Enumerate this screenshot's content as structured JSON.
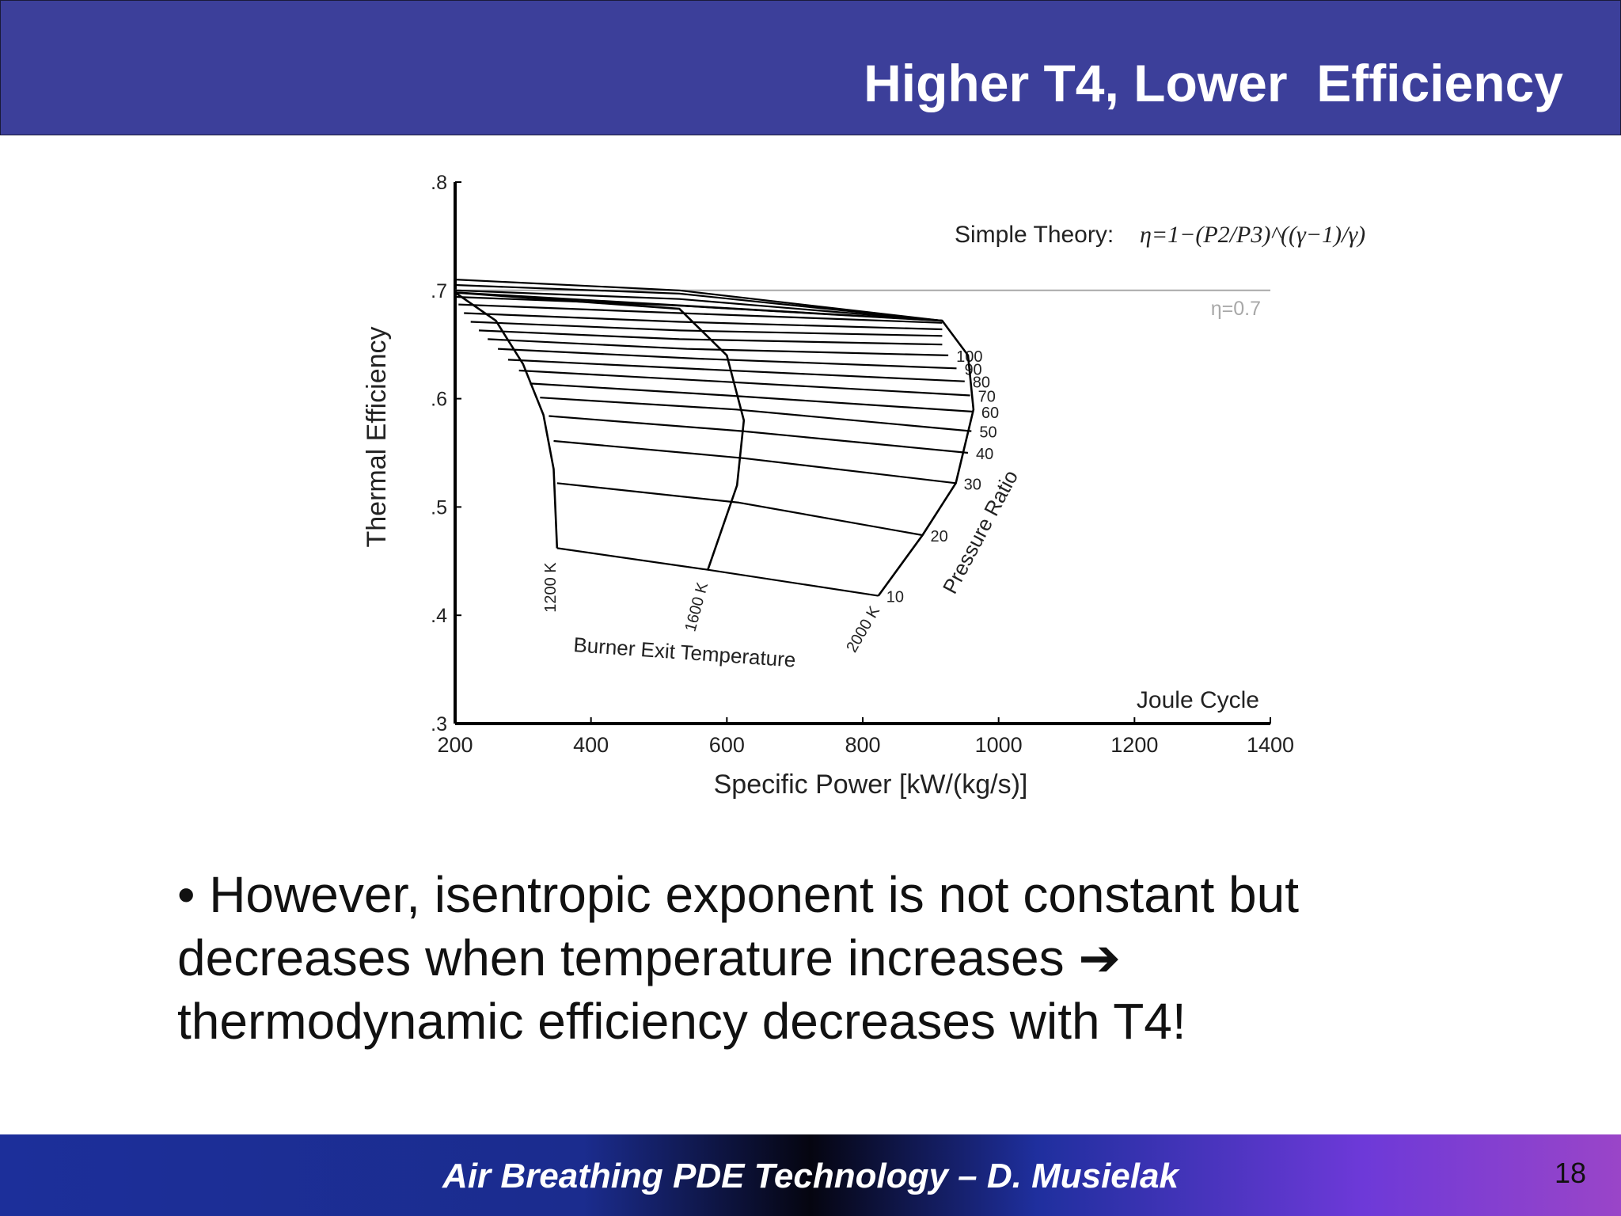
{
  "slide": {
    "title": "Higher T4, Lower  Efficiency",
    "bullet": "• However, isentropic exponent is not constant but decreases when temperature increases ➔ thermodynamic efficiency decreases with T4!",
    "footer": "Air Breathing PDE Technology – D. Musielak",
    "page_number": "18"
  },
  "colors": {
    "title_bar": "#3c3f9a",
    "footer_gradient": [
      "#1c2f9a",
      "#050510",
      "#6d39d8",
      "#9a45c8"
    ],
    "reference_line": "#a8a8a8"
  },
  "chart_data": {
    "type": "line",
    "title": "",
    "xlabel": "Specific Power [kW/(kg/s)]",
    "ylabel": "Thermal Efficiency",
    "xlim": [
      200,
      1400
    ],
    "ylim": [
      0.3,
      0.8
    ],
    "x_ticks": [
      "200",
      "400",
      "600",
      "800",
      "1000",
      "1200",
      "1400"
    ],
    "y_ticks": [
      ".3",
      ".4",
      ".5",
      ".6",
      ".7",
      ".8"
    ],
    "grid": false,
    "formula_label": "Simple Theory:",
    "formula": "η=1−(P2/P3)^((γ−1)/γ)",
    "reference_line": {
      "y": 0.7,
      "label": "η=0.7"
    },
    "cycle_label": "Joule Cycle",
    "pressure_ratio_axis_label": "Pressure Ratio",
    "temperature_axis_label": "Burner Exit Temperature",
    "temperature_series": [
      {
        "name": "1200 K",
        "points": [
          [
            200,
            0.698
          ],
          [
            260,
            0.672
          ],
          [
            300,
            0.632
          ],
          [
            330,
            0.585
          ],
          [
            345,
            0.535
          ],
          [
            350,
            0.462
          ]
        ]
      },
      {
        "name": "1600 K",
        "points": [
          [
            200,
            0.698
          ],
          [
            530,
            0.683
          ],
          [
            600,
            0.64
          ],
          [
            625,
            0.58
          ],
          [
            615,
            0.52
          ],
          [
            572,
            0.442
          ]
        ]
      },
      {
        "name": "2000 K",
        "points": [
          [
            200,
            0.698
          ],
          [
            917,
            0.672
          ],
          [
            955,
            0.64
          ],
          [
            963,
            0.59
          ],
          [
            937,
            0.522
          ],
          [
            888,
            0.474
          ],
          [
            823,
            0.418
          ]
        ]
      }
    ],
    "pressure_ratio_series": [
      {
        "name": "10",
        "points": [
          [
            350,
            0.462
          ],
          [
            572,
            0.442
          ],
          [
            823,
            0.418
          ]
        ]
      },
      {
        "name": "20",
        "points": [
          [
            350,
            0.522
          ],
          [
            618,
            0.504
          ],
          [
            888,
            0.474
          ]
        ]
      },
      {
        "name": "30",
        "points": [
          [
            345,
            0.561
          ],
          [
            625,
            0.545
          ],
          [
            937,
            0.522
          ]
        ]
      },
      {
        "name": "40",
        "points": [
          [
            338,
            0.584
          ],
          [
            623,
            0.57
          ],
          [
            955,
            0.55
          ]
        ]
      },
      {
        "name": "50",
        "points": [
          [
            325,
            0.601
          ],
          [
            614,
            0.59
          ],
          [
            960,
            0.57
          ]
        ]
      },
      {
        "name": "60",
        "points": [
          [
            310,
            0.614
          ],
          [
            600,
            0.603
          ],
          [
            963,
            0.588
          ]
        ]
      },
      {
        "name": "70",
        "points": [
          [
            294,
            0.626
          ],
          [
            586,
            0.616
          ],
          [
            958,
            0.603
          ]
        ]
      },
      {
        "name": "80",
        "points": [
          [
            278,
            0.636
          ],
          [
            572,
            0.627
          ],
          [
            950,
            0.616
          ]
        ]
      },
      {
        "name": "90",
        "points": [
          [
            263,
            0.646
          ],
          [
            556,
            0.637
          ],
          [
            938,
            0.628
          ]
        ]
      },
      {
        "name": "100",
        "points": [
          [
            248,
            0.655
          ],
          [
            541,
            0.646
          ],
          [
            926,
            0.64
          ]
        ]
      },
      {
        "name": "",
        "points": [
          [
            235,
            0.663
          ],
          [
            530,
            0.655
          ],
          [
            917,
            0.65
          ]
        ]
      },
      {
        "name": "",
        "points": [
          [
            223,
            0.671
          ],
          [
            530,
            0.663
          ],
          [
            917,
            0.658
          ]
        ]
      },
      {
        "name": "",
        "points": [
          [
            213,
            0.679
          ],
          [
            530,
            0.671
          ],
          [
            917,
            0.664
          ]
        ]
      },
      {
        "name": "",
        "points": [
          [
            205,
            0.687
          ],
          [
            530,
            0.679
          ],
          [
            917,
            0.67
          ]
        ]
      },
      {
        "name": "",
        "points": [
          [
            200,
            0.694
          ],
          [
            530,
            0.686
          ],
          [
            917,
            0.672
          ]
        ]
      },
      {
        "name": "",
        "points": [
          [
            200,
            0.7
          ],
          [
            530,
            0.692
          ],
          [
            917,
            0.672
          ]
        ]
      },
      {
        "name": "",
        "points": [
          [
            200,
            0.705
          ],
          [
            530,
            0.697
          ],
          [
            917,
            0.672
          ]
        ]
      },
      {
        "name": "",
        "points": [
          [
            200,
            0.71
          ],
          [
            530,
            0.7
          ],
          [
            917,
            0.672
          ]
        ]
      }
    ]
  }
}
